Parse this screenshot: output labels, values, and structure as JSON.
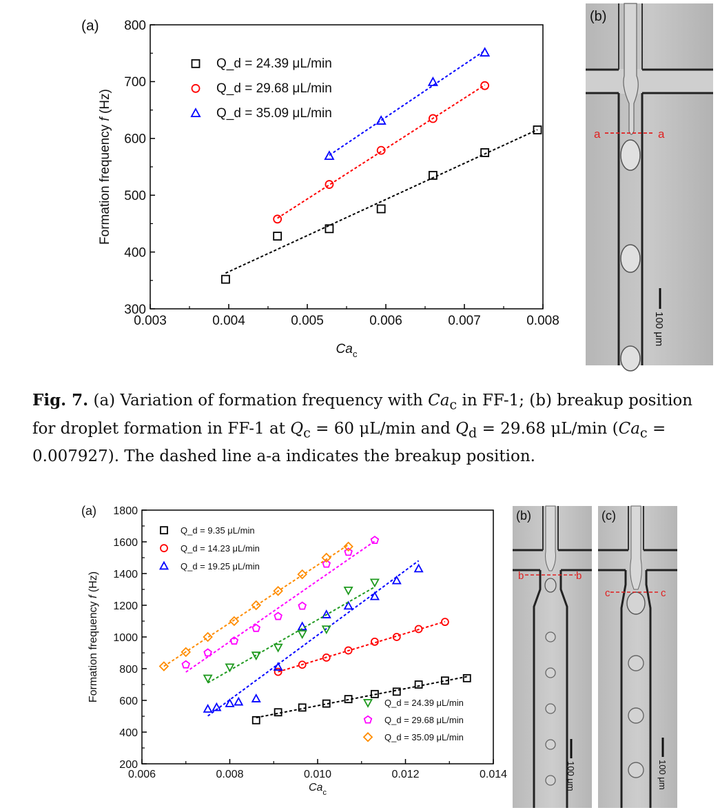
{
  "figures": [
    {
      "id": "fig7",
      "panel_a_label": "(a)",
      "panel_b_label": "(b)",
      "micro_labels": {
        "b_left": "a",
        "b_right": "a",
        "scale": "100 μm"
      },
      "chart_data": {
        "type": "scatter",
        "ylabel": "Formation frequency f (Hz)",
        "xlabel": "Ca_c",
        "xlim": [
          0.003,
          0.008
        ],
        "ylim": [
          300,
          800
        ],
        "xticks": [
          "0.003",
          "0.004",
          "0.005",
          "0.006",
          "0.007",
          "0.008"
        ],
        "yticks": [
          "300",
          "400",
          "500",
          "600",
          "700",
          "800"
        ],
        "legend_position": "top-left",
        "series": [
          {
            "name": "Q_d = 24.39 μL/min",
            "marker": "square",
            "color": "#000000",
            "x": [
              0.00396,
              0.00462,
              0.00528,
              0.00594,
              0.0066,
              0.00726,
              0.00793
            ],
            "y": [
              352,
              428,
              441,
              476,
              535,
              575,
              615
            ]
          },
          {
            "name": "Q_d = 29.68 μL/min",
            "marker": "circle",
            "color": "#ff0000",
            "x": [
              0.00462,
              0.00528,
              0.00594,
              0.0066,
              0.00726
            ],
            "y": [
              458,
              519,
              579,
              635,
              693
            ]
          },
          {
            "name": "Q_d = 35.09 μL/min",
            "marker": "triangle",
            "color": "#0000ff",
            "x": [
              0.00528,
              0.00594,
              0.0066,
              0.00726
            ],
            "y": [
              569,
              631,
              699,
              751
            ]
          }
        ]
      },
      "caption": {
        "label": "Fig. 7.",
        "text_1": " (a) Variation of formation frequency with ",
        "var_1": "Ca",
        "sub_1": "c",
        "text_2": " in FF-1; (b) breakup position for droplet formation in FF-1 at ",
        "var_2": "Q",
        "sub_2": "c",
        "text_3": " = 60 μL/min and ",
        "var_3": "Q",
        "sub_3": "d",
        "text_4": " = 29.68 μL/min (",
        "var_4": "Ca",
        "sub_4": "c",
        "text_5": " = 0.007927). The dashed line a-a indicates the breakup position."
      }
    },
    {
      "id": "fig8",
      "panel_a_label": "(a)",
      "panel_b_label": "(b)",
      "panel_c_label": "(c)",
      "micro_labels": {
        "b_left": "b",
        "b_right": "b",
        "c_left": "c",
        "c_right": "c",
        "scale_b": "100 μm",
        "scale_c": "100 μm"
      },
      "chart_data": {
        "type": "scatter",
        "ylabel": "Formation frequency f (Hz)",
        "xlabel": "Ca_c",
        "xlim": [
          0.006,
          0.014
        ],
        "ylim": [
          200,
          1800
        ],
        "xticks": [
          "0.006",
          "0.008",
          "0.010",
          "0.012",
          "0.014"
        ],
        "yticks": [
          "200",
          "400",
          "600",
          "800",
          "1000",
          "1200",
          "1400",
          "1600",
          "1800"
        ],
        "legend_position": "top-left and bottom-right",
        "series": [
          {
            "name": "Q_d = 9.35 μL/min",
            "marker": "square",
            "color": "#000000",
            "x": [
              0.0086,
              0.0091,
              0.00965,
              0.0102,
              0.0107,
              0.0113,
              0.0118,
              0.0123,
              0.0129,
              0.0134
            ],
            "y": [
              475,
              525,
              555,
              580,
              608,
              640,
              655,
              700,
              725,
              740
            ]
          },
          {
            "name": "Q_d = 14.23 μL/min",
            "marker": "circle",
            "color": "#ff0000",
            "x": [
              0.0091,
              0.00965,
              0.0102,
              0.0107,
              0.0113,
              0.0118,
              0.0123,
              0.0129
            ],
            "y": [
              780,
              825,
              870,
              915,
              970,
              1000,
              1050,
              1095
            ]
          },
          {
            "name": "Q_d = 19.25 μL/min",
            "marker": "triangle",
            "color": "#0000ff",
            "x": [
              0.0075,
              0.0077,
              0.008,
              0.0082,
              0.0086,
              0.0091,
              0.00965,
              0.0102,
              0.0107,
              0.0113,
              0.0118,
              0.0123
            ],
            "y": [
              545,
              555,
              580,
              590,
              610,
              810,
              1065,
              1140,
              1195,
              1255,
              1355,
              1430
            ]
          },
          {
            "name": "Q_d = 24.39 μL/min",
            "marker": "triangle-down",
            "color": "#1f9a1f",
            "x": [
              0.0075,
              0.008,
              0.0086,
              0.0091,
              0.00965,
              0.0102,
              0.0107,
              0.0113
            ],
            "y": [
              740,
              810,
              885,
              935,
              1020,
              1050,
              1295,
              1345
            ]
          },
          {
            "name": "Q_d = 29.68 μL/min",
            "marker": "pentagon",
            "color": "#ff00ff",
            "x": [
              0.007,
              0.0075,
              0.0081,
              0.0086,
              0.0091,
              0.00965,
              0.0102,
              0.0107,
              0.0113
            ],
            "y": [
              825,
              900,
              975,
              1055,
              1130,
              1195,
              1460,
              1535,
              1610
            ]
          },
          {
            "name": "Q_d = 35.09 μL/min",
            "marker": "diamond",
            "color": "#ff8c00",
            "x": [
              0.0065,
              0.007,
              0.0075,
              0.0081,
              0.0086,
              0.0091,
              0.00965,
              0.0102,
              0.0107
            ],
            "y": [
              815,
              905,
              1000,
              1100,
              1200,
              1290,
              1395,
              1500,
              1570
            ]
          }
        ]
      }
    }
  ]
}
